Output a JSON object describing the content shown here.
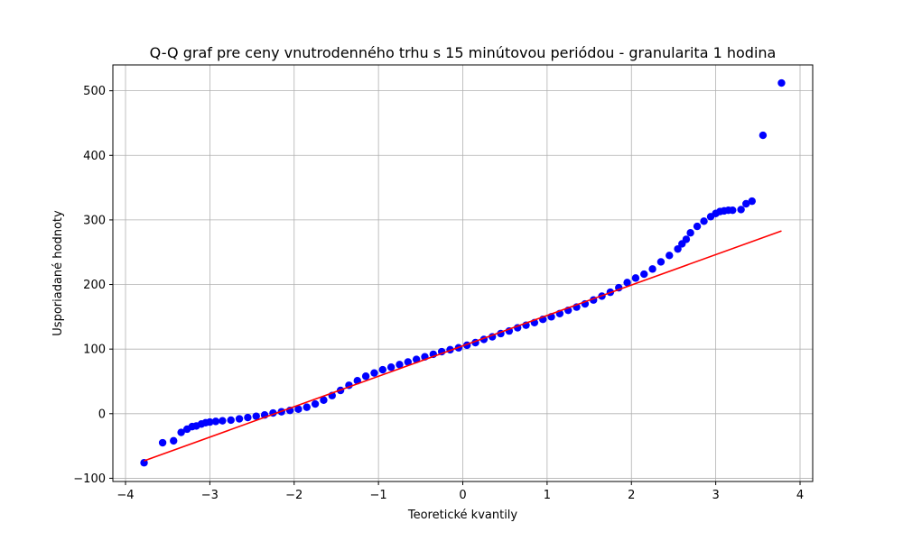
{
  "chart_data": {
    "type": "scatter",
    "title": "Q-Q graf pre ceny vnutrodenného trhu s 15 minútovou periódou - granularita 1 hodina",
    "xlabel": "Teoretické kvantily",
    "ylabel": "Usporiadané hodnoty",
    "xlim": [
      -4.15,
      4.15
    ],
    "ylim": [
      -105,
      540
    ],
    "xticks": [
      -4,
      -3,
      -2,
      -1,
      0,
      1,
      2,
      3,
      4
    ],
    "xtick_labels": [
      "−4",
      "−3",
      "−2",
      "−1",
      "0",
      "1",
      "2",
      "3",
      "4"
    ],
    "yticks": [
      -100,
      0,
      100,
      200,
      300,
      400,
      500
    ],
    "ytick_labels": [
      "−100",
      "0",
      "100",
      "200",
      "300",
      "400",
      "500"
    ],
    "grid": true,
    "series": [
      {
        "name": "Usporiadané hodnoty",
        "kind": "points",
        "color": "#0000ff",
        "x": [
          -3.78,
          -3.56,
          -3.43,
          -3.34,
          -3.27,
          -3.21,
          -3.16,
          -3.1,
          -3.05,
          -3.0,
          -2.93,
          -2.85,
          -2.75,
          -2.65,
          -2.55,
          -2.45,
          -2.35,
          -2.25,
          -2.15,
          -2.05,
          -1.95,
          -1.85,
          -1.75,
          -1.65,
          -1.55,
          -1.45,
          -1.35,
          -1.25,
          -1.15,
          -1.05,
          -0.95,
          -0.85,
          -0.75,
          -0.65,
          -0.55,
          -0.45,
          -0.35,
          -0.25,
          -0.15,
          -0.05,
          0.05,
          0.15,
          0.25,
          0.35,
          0.45,
          0.55,
          0.65,
          0.75,
          0.85,
          0.95,
          1.05,
          1.15,
          1.25,
          1.35,
          1.45,
          1.55,
          1.65,
          1.75,
          1.85,
          1.95,
          2.05,
          2.15,
          2.25,
          2.35,
          2.45,
          2.55,
          2.6,
          2.65,
          2.7,
          2.78,
          2.86,
          2.94,
          3.0,
          3.05,
          3.1,
          3.15,
          3.2,
          3.3,
          3.36,
          3.43,
          3.56,
          3.78
        ],
        "y": [
          -76,
          -45,
          -42,
          -29,
          -24,
          -20,
          -19,
          -16,
          -14,
          -13,
          -12,
          -11,
          -10,
          -8,
          -6,
          -4,
          -2,
          1,
          3,
          5,
          7,
          10,
          15,
          21,
          28,
          36,
          44,
          51,
          58,
          63,
          68,
          72,
          76,
          80,
          84,
          88,
          92,
          96,
          99,
          102,
          106,
          110,
          115,
          119,
          124,
          128,
          133,
          137,
          141,
          146,
          150,
          155,
          160,
          165,
          170,
          176,
          182,
          188,
          195,
          203,
          210,
          216,
          224,
          235,
          245,
          255,
          263,
          270,
          280,
          290,
          298,
          305,
          310,
          313,
          314,
          315,
          315,
          316,
          325,
          329,
          431,
          512
        ]
      },
      {
        "name": "Referenčná priamka",
        "kind": "line",
        "color": "#ff0000",
        "x": [
          -3.78,
          3.78
        ],
        "y": [
          -73,
          283
        ]
      }
    ]
  }
}
